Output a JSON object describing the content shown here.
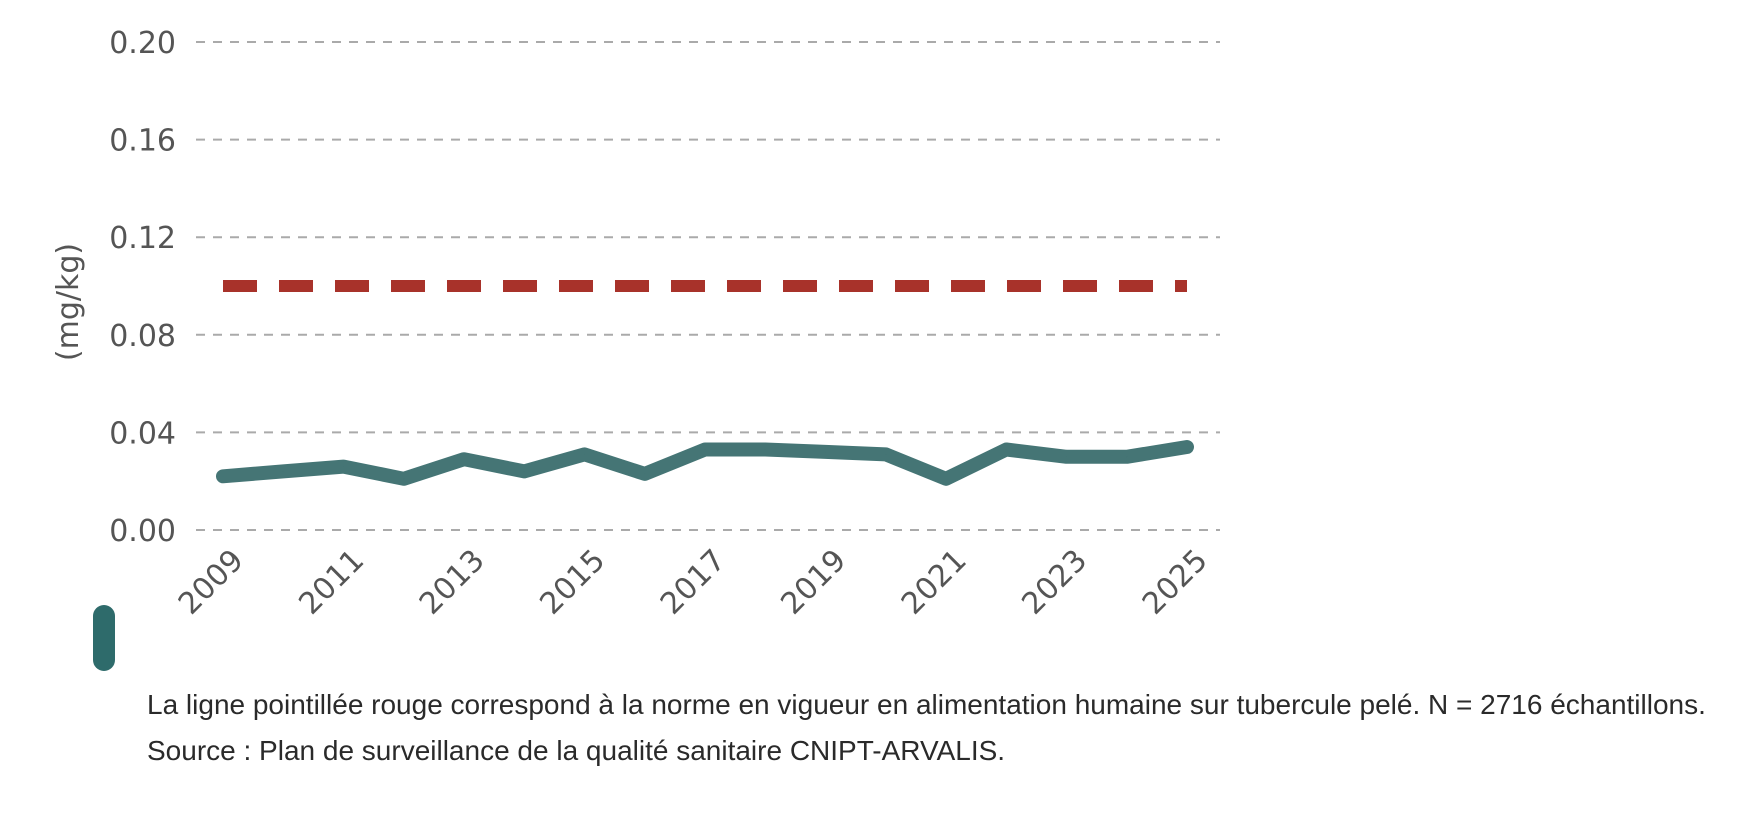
{
  "chart_data": {
    "type": "line",
    "title": "",
    "xlabel": "",
    "ylabel": "(mg/kg)",
    "ylim": [
      0,
      0.2
    ],
    "yticks": [
      "0.00",
      "0.04",
      "0.08",
      "0.12",
      "0.16",
      "0.20"
    ],
    "xticks": [
      "2009",
      "2011",
      "2013",
      "2015",
      "2017",
      "2019",
      "2021",
      "2023",
      "2025"
    ],
    "grid": true,
    "x": [
      2009,
      2010,
      2011,
      2012,
      2013,
      2014,
      2015,
      2016,
      2017,
      2018,
      2019,
      2020,
      2021,
      2022,
      2023,
      2024,
      2025
    ],
    "series": [
      {
        "values": [
          0.022,
          0.024,
          0.026,
          0.021,
          0.029,
          0.024,
          0.031,
          0.023,
          0.033,
          0.033,
          0.032,
          0.031,
          0.021,
          0.033,
          0.03,
          0.03,
          0.034
        ],
        "color": "#457575"
      }
    ],
    "reference_line": {
      "value": 0.1,
      "color": "#a8322a"
    }
  },
  "caption": {
    "text": "La ligne pointillée rouge correspond à la norme en vigueur en alimentation humaine sur tubercule pelé. N = 2716 échantillons. Source : Plan de surveillance de la qualité sanitaire CNIPT-ARVALIS."
  },
  "colors": {
    "marker": "#2e6b6b",
    "grid": "#aaaaaa"
  }
}
